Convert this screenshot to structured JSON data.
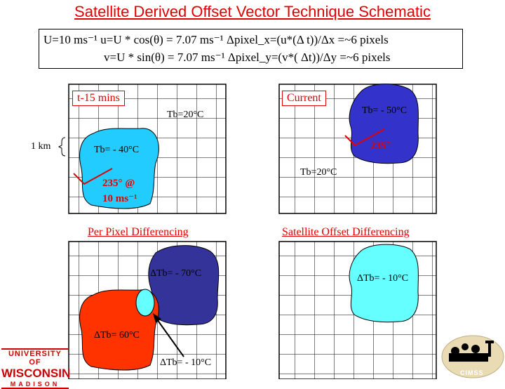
{
  "title": "Satellite Derived Offset Vector Technique Schematic",
  "equations": {
    "line1": "U=10 ms⁻¹  u=U * cos(θ) = 7.07 ms⁻¹   Δpixel_x=(u*(Δ t))/Δx  =~6 pixels",
    "line2": "v=U * sin(θ) = 7.07 ms⁻¹   Δpixel_y=(v*( Δt))/Δy  =~6 pixels"
  },
  "panels": {
    "t15": {
      "tag": "t-15 mins",
      "tb_warm": "Tb=20°C",
      "tb_cloud": "Tb= - 40°C",
      "vector_line1": "235° @",
      "vector_line2": "10 ms⁻¹",
      "scale_label": "1 km"
    },
    "current": {
      "tag": "Current",
      "tb_cloud": "Tb= - 50°C",
      "angle": "235°",
      "tb_warm": "Tb=20°C"
    },
    "per_pixel": {
      "heading": "Per Pixel Differencing",
      "dtb_blue": "ΔTb= - 70°C",
      "dtb_red": "ΔTb= 60°C",
      "dtb_overlap": "ΔTb= - 10°C"
    },
    "offset": {
      "heading": "Satellite Offset Differencing",
      "dtb": "ΔTb= - 10°C"
    }
  },
  "logos": {
    "uw_line1": "UNIVERSITY OF",
    "uw_line2": "WISCONSIN",
    "uw_line3": "MADISON",
    "cimss": "CIMSS"
  },
  "colors": {
    "cyan": "#22ccff",
    "blue": "#3333cc",
    "navy": "#333399",
    "red_fill": "#ff3300",
    "light_cyan": "#66ffff",
    "accent_red": "#e00000"
  }
}
